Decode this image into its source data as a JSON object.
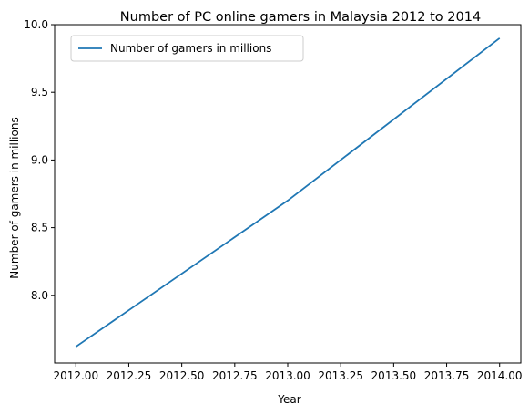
{
  "chart_data": {
    "type": "line",
    "title": "Number of PC online gamers in Malaysia 2012 to 2014",
    "xlabel": "Year",
    "ylabel": "Number of gamers in millions",
    "xlim": [
      1991.9,
      2014.1
    ],
    "ylim": [
      7.5,
      10.0
    ],
    "x_ticks": [
      "2012.00",
      "2012.25",
      "2012.50",
      "2012.75",
      "2013.00",
      "2013.25",
      "2013.50",
      "2013.75",
      "2014.00"
    ],
    "x_tick_values": [
      2012.0,
      2012.25,
      2012.5,
      2012.75,
      2013.0,
      2013.25,
      2013.5,
      2013.75,
      2014.0
    ],
    "y_ticks": [
      "8.0",
      "8.5",
      "9.0",
      "9.5",
      "10.0"
    ],
    "y_tick_values": [
      8.0,
      8.5,
      9.0,
      9.5,
      10.0
    ],
    "grid": false,
    "legend_position": "top-left",
    "series": [
      {
        "name": "Number of gamers in millions",
        "color": "#1f77b4",
        "x": [
          2012,
          2013,
          2014
        ],
        "y": [
          7.62,
          8.7,
          9.9
        ]
      }
    ]
  }
}
